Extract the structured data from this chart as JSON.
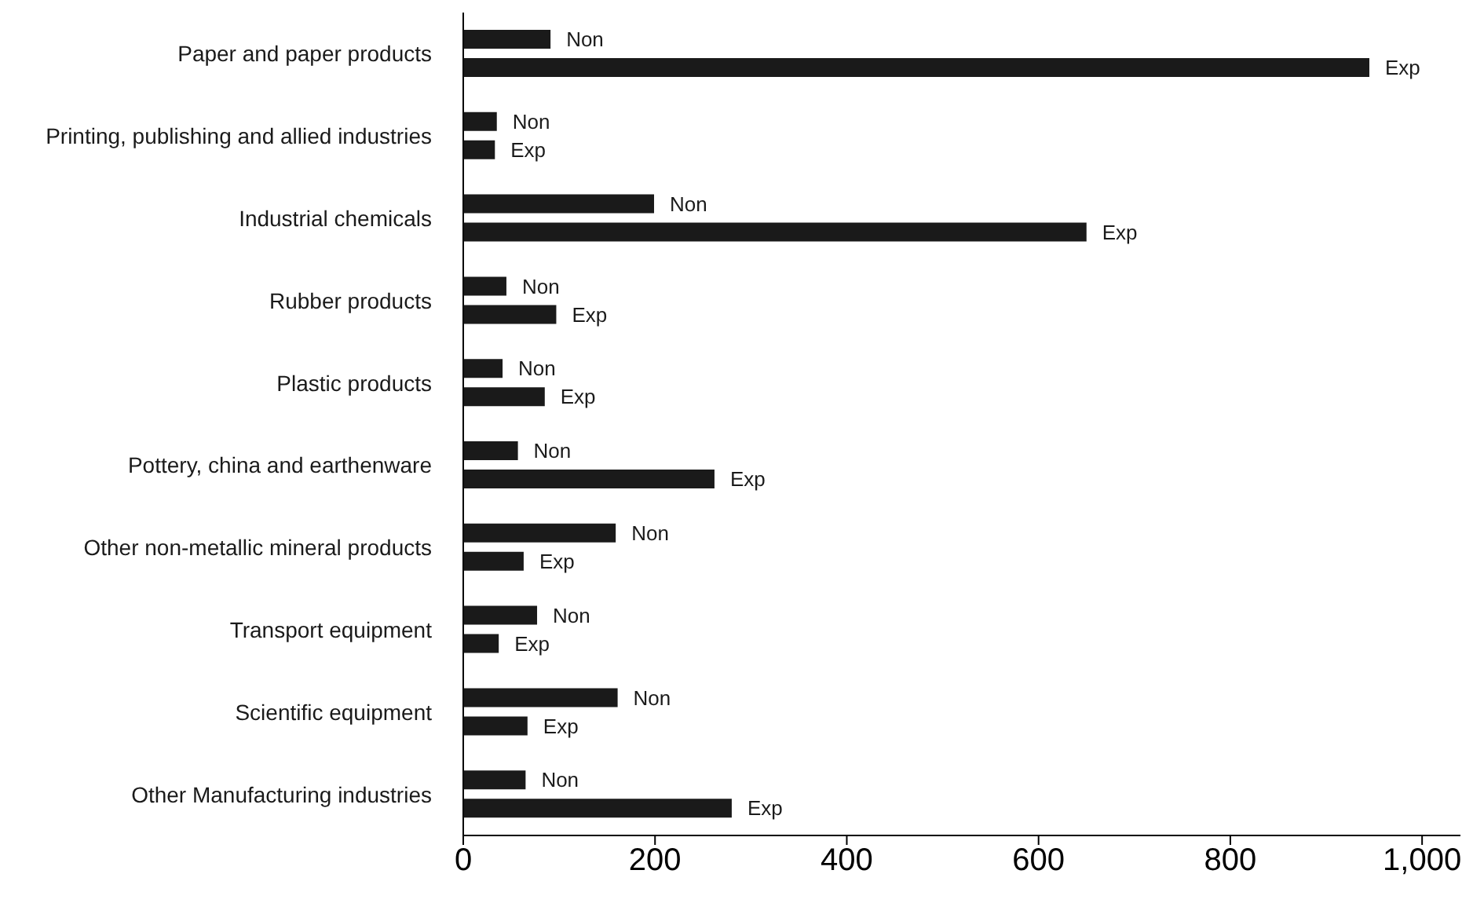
{
  "chart_data": {
    "type": "bar",
    "orientation": "horizontal",
    "categories": [
      "Paper and paper products",
      "Printing, publishing and allied industries",
      "Industrial chemicals",
      "Rubber products",
      "Plastic products",
      "Pottery, china and earthenware",
      "Other non-metallic mineral products",
      "Transport equipment",
      "Scientific equipment",
      "Other Manufacturing industries"
    ],
    "series": [
      {
        "name": "Non",
        "color": "#1a1a1a",
        "values": [
          91,
          35,
          199,
          45,
          41,
          57,
          159,
          77,
          161,
          65
        ]
      },
      {
        "name": "Exp",
        "color": "#1a1a1a",
        "values": [
          945,
          33,
          650,
          97,
          85,
          262,
          63,
          37,
          67,
          280
        ]
      }
    ],
    "xlim": [
      0,
      1040
    ],
    "xticks": [
      0,
      200,
      400,
      600,
      800,
      {
        "value": 1000,
        "label": "1,000"
      }
    ],
    "grid": false,
    "legend": false
  }
}
